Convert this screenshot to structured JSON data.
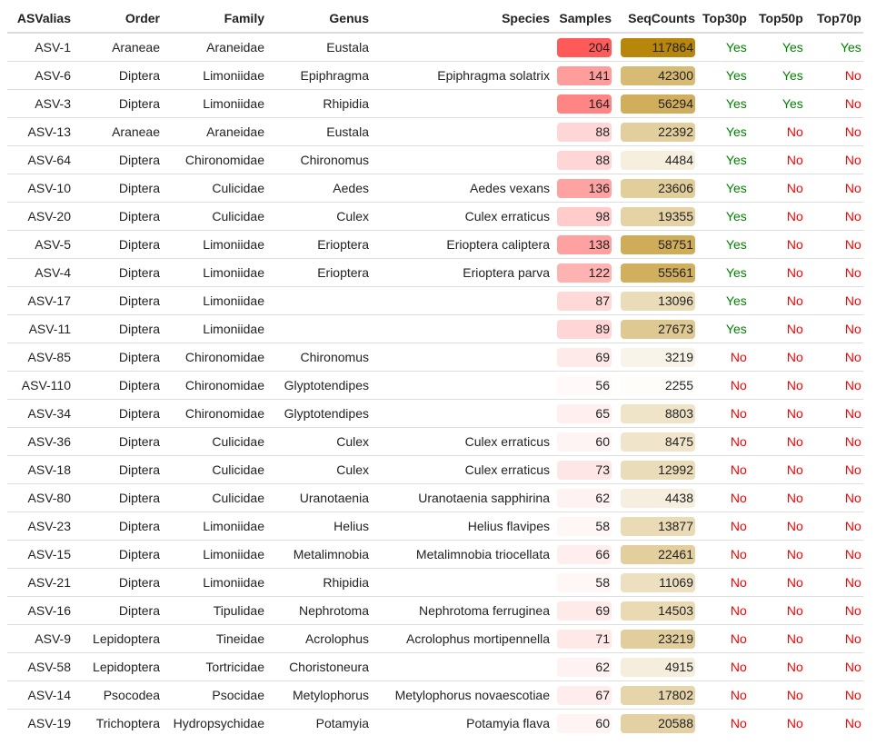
{
  "columns": [
    "ASValias",
    "Order",
    "Family",
    "Genus",
    "Species",
    "Samples",
    "SeqCounts",
    "Top30p",
    "Top50p",
    "Top70p"
  ],
  "colors": {
    "samples_bar": "#ff5a5a",
    "seqcounts_bar": "#b8860b",
    "yes": "#008000",
    "no": "#ff0000"
  },
  "rows": [
    {
      "alias": "ASV-1",
      "order": "Araneae",
      "family": "Araneidae",
      "genus": "Eustala",
      "species": "",
      "samples": "204",
      "seqcounts": "117864",
      "top30": "Yes",
      "top50": "Yes",
      "top70": "Yes"
    },
    {
      "alias": "ASV-6",
      "order": "Diptera",
      "family": "Limoniidae",
      "genus": "Epiphragma",
      "species": "Epiphragma solatrix",
      "samples": "141",
      "seqcounts": "42300",
      "top30": "Yes",
      "top50": "Yes",
      "top70": "No"
    },
    {
      "alias": "ASV-3",
      "order": "Diptera",
      "family": "Limoniidae",
      "genus": "Rhipidia",
      "species": "",
      "samples": "164",
      "seqcounts": "56294",
      "top30": "Yes",
      "top50": "Yes",
      "top70": "No"
    },
    {
      "alias": "ASV-13",
      "order": "Araneae",
      "family": "Araneidae",
      "genus": "Eustala",
      "species": "",
      "samples": "88",
      "seqcounts": "22392",
      "top30": "Yes",
      "top50": "No",
      "top70": "No"
    },
    {
      "alias": "ASV-64",
      "order": "Diptera",
      "family": "Chironomidae",
      "genus": "Chironomus",
      "species": "",
      "samples": "88",
      "seqcounts": "4484",
      "top30": "Yes",
      "top50": "No",
      "top70": "No"
    },
    {
      "alias": "ASV-10",
      "order": "Diptera",
      "family": "Culicidae",
      "genus": "Aedes",
      "species": "Aedes vexans",
      "samples": "136",
      "seqcounts": "23606",
      "top30": "Yes",
      "top50": "No",
      "top70": "No"
    },
    {
      "alias": "ASV-20",
      "order": "Diptera",
      "family": "Culicidae",
      "genus": "Culex",
      "species": "Culex erraticus",
      "samples": "98",
      "seqcounts": "19355",
      "top30": "Yes",
      "top50": "No",
      "top70": "No"
    },
    {
      "alias": "ASV-5",
      "order": "Diptera",
      "family": "Limoniidae",
      "genus": "Erioptera",
      "species": "Erioptera caliptera",
      "samples": "138",
      "seqcounts": "58751",
      "top30": "Yes",
      "top50": "No",
      "top70": "No"
    },
    {
      "alias": "ASV-4",
      "order": "Diptera",
      "family": "Limoniidae",
      "genus": "Erioptera",
      "species": "Erioptera parva",
      "samples": "122",
      "seqcounts": "55561",
      "top30": "Yes",
      "top50": "No",
      "top70": "No"
    },
    {
      "alias": "ASV-17",
      "order": "Diptera",
      "family": "Limoniidae",
      "genus": "",
      "species": "",
      "samples": "87",
      "seqcounts": "13096",
      "top30": "Yes",
      "top50": "No",
      "top70": "No"
    },
    {
      "alias": "ASV-11",
      "order": "Diptera",
      "family": "Limoniidae",
      "genus": "",
      "species": "",
      "samples": "89",
      "seqcounts": "27673",
      "top30": "Yes",
      "top50": "No",
      "top70": "No"
    },
    {
      "alias": "ASV-85",
      "order": "Diptera",
      "family": "Chironomidae",
      "genus": "Chironomus",
      "species": "",
      "samples": "69",
      "seqcounts": "3219",
      "top30": "No",
      "top50": "No",
      "top70": "No"
    },
    {
      "alias": "ASV-110",
      "order": "Diptera",
      "family": "Chironomidae",
      "genus": "Glyptotendipes",
      "species": "",
      "samples": "56",
      "seqcounts": "2255",
      "top30": "No",
      "top50": "No",
      "top70": "No"
    },
    {
      "alias": "ASV-34",
      "order": "Diptera",
      "family": "Chironomidae",
      "genus": "Glyptotendipes",
      "species": "",
      "samples": "65",
      "seqcounts": "8803",
      "top30": "No",
      "top50": "No",
      "top70": "No"
    },
    {
      "alias": "ASV-36",
      "order": "Diptera",
      "family": "Culicidae",
      "genus": "Culex",
      "species": "Culex erraticus",
      "samples": "60",
      "seqcounts": "8475",
      "top30": "No",
      "top50": "No",
      "top70": "No"
    },
    {
      "alias": "ASV-18",
      "order": "Diptera",
      "family": "Culicidae",
      "genus": "Culex",
      "species": "Culex erraticus",
      "samples": "73",
      "seqcounts": "12992",
      "top30": "No",
      "top50": "No",
      "top70": "No"
    },
    {
      "alias": "ASV-80",
      "order": "Diptera",
      "family": "Culicidae",
      "genus": "Uranotaenia",
      "species": "Uranotaenia sapphirina",
      "samples": "62",
      "seqcounts": "4438",
      "top30": "No",
      "top50": "No",
      "top70": "No"
    },
    {
      "alias": "ASV-23",
      "order": "Diptera",
      "family": "Limoniidae",
      "genus": "Helius",
      "species": "Helius flavipes",
      "samples": "58",
      "seqcounts": "13877",
      "top30": "No",
      "top50": "No",
      "top70": "No"
    },
    {
      "alias": "ASV-15",
      "order": "Diptera",
      "family": "Limoniidae",
      "genus": "Metalimnobia",
      "species": "Metalimnobia triocellata",
      "samples": "66",
      "seqcounts": "22461",
      "top30": "No",
      "top50": "No",
      "top70": "No"
    },
    {
      "alias": "ASV-21",
      "order": "Diptera",
      "family": "Limoniidae",
      "genus": "Rhipidia",
      "species": "",
      "samples": "58",
      "seqcounts": "11069",
      "top30": "No",
      "top50": "No",
      "top70": "No"
    },
    {
      "alias": "ASV-16",
      "order": "Diptera",
      "family": "Tipulidae",
      "genus": "Nephrotoma",
      "species": "Nephrotoma ferruginea",
      "samples": "69",
      "seqcounts": "14503",
      "top30": "No",
      "top50": "No",
      "top70": "No"
    },
    {
      "alias": "ASV-9",
      "order": "Lepidoptera",
      "family": "Tineidae",
      "genus": "Acrolophus",
      "species": "Acrolophus mortipennella",
      "samples": "71",
      "seqcounts": "23219",
      "top30": "No",
      "top50": "No",
      "top70": "No"
    },
    {
      "alias": "ASV-58",
      "order": "Lepidoptera",
      "family": "Tortricidae",
      "genus": "Choristoneura",
      "species": "",
      "samples": "62",
      "seqcounts": "4915",
      "top30": "No",
      "top50": "No",
      "top70": "No"
    },
    {
      "alias": "ASV-14",
      "order": "Psocodea",
      "family": "Psocidae",
      "genus": "Metylophorus",
      "species": "Metylophorus novaescotiae",
      "samples": "67",
      "seqcounts": "17802",
      "top30": "No",
      "top50": "No",
      "top70": "No"
    },
    {
      "alias": "ASV-19",
      "order": "Trichoptera",
      "family": "Hydropsychidae",
      "genus": "Potamyia",
      "species": "Potamyia flava",
      "samples": "60",
      "seqcounts": "20588",
      "top30": "No",
      "top50": "No",
      "top70": "No"
    }
  ]
}
